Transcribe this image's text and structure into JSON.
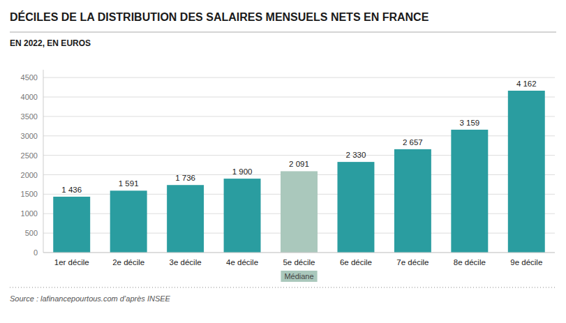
{
  "chart_data": {
    "type": "bar",
    "title": "DÉCILES DE LA DISTRIBUTION DES SALAIRES MENSUELS NETS EN FRANCE",
    "subtitle": "EN 2022, EN EUROS",
    "source": "Source : lafinancepourtous.com d’après INSEE",
    "categories": [
      "1er décile",
      "2e décile",
      "3e décile",
      "4e décile",
      "5e décile",
      "6e décile",
      "7e décile",
      "8e décile",
      "9e décile"
    ],
    "values": [
      1436,
      1591,
      1736,
      1900,
      2091,
      2330,
      2657,
      3159,
      4162
    ],
    "value_labels": [
      "1 436",
      "1 591",
      "1 736",
      "1 900",
      "2 091",
      "2 330",
      "2 657",
      "3 159",
      "4 162"
    ],
    "colors": [
      "#2a9da0",
      "#2a9da0",
      "#2a9da0",
      "#2a9da0",
      "#aac8bc",
      "#2a9da0",
      "#2a9da0",
      "#2a9da0",
      "#2a9da0"
    ],
    "annotations": [
      {
        "text": "Médiane",
        "x": "5e décile"
      }
    ],
    "ylim": [
      0,
      4700
    ],
    "yticks": [
      0,
      500,
      1000,
      1500,
      2000,
      2500,
      3000,
      3500,
      4000,
      4500
    ],
    "grid": true,
    "data_labels": true
  }
}
